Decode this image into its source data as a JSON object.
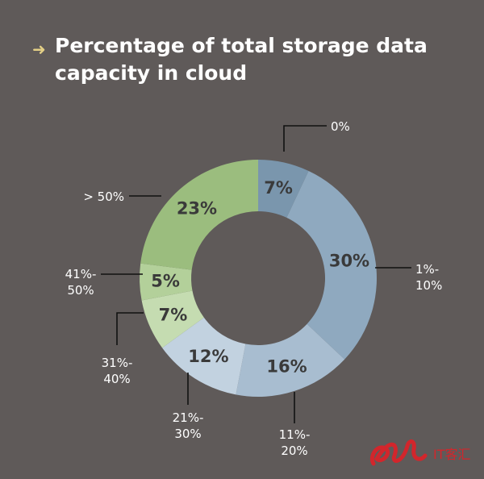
{
  "title_arrow": "➜",
  "chart_data": {
    "type": "pie",
    "title": "Percentage of total storage data capacity in cloud",
    "donut": true,
    "slices": [
      {
        "label": "0%",
        "value": 7,
        "data_label": "7%",
        "color": "#7a96ad",
        "label_color": "#3a3a3a"
      },
      {
        "label": "1%-10%",
        "value": 30,
        "data_label": "30%",
        "color": "#8fa9bf",
        "label_color": "#3a3a3a"
      },
      {
        "label": "11%-20%",
        "value": 16,
        "data_label": "16%",
        "color": "#a8bdd0",
        "label_color": "#3a3a3a"
      },
      {
        "label": "21%-30%",
        "value": 12,
        "data_label": "12%",
        "color": "#c2d2e0",
        "label_color": "#3a3a3a"
      },
      {
        "label": "31%-40%",
        "value": 7,
        "data_label": "7%",
        "color": "#c5dcb1",
        "label_color": "#3a3a3a"
      },
      {
        "label": "41%-50%",
        "value": 5,
        "data_label": "5%",
        "color": "#b3d09a",
        "label_color": "#3a3a3a"
      },
      {
        "label": "> 50%",
        "value": 23,
        "data_label": "23%",
        "color": "#9bbd7e",
        "label_color": "#3a3a3a"
      }
    ]
  },
  "watermark": {
    "text": "IT客汇",
    "color": "#d2262c"
  }
}
